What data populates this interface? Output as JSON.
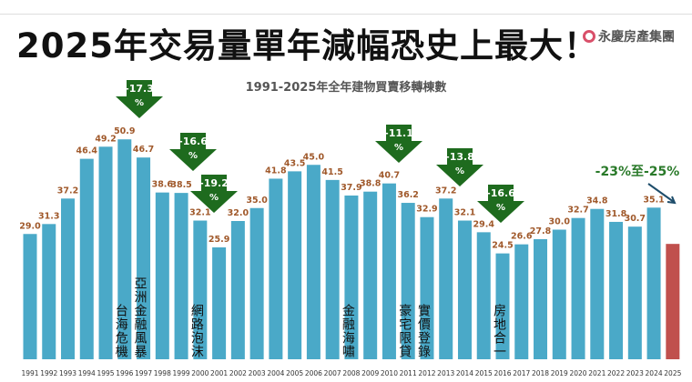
{
  "header": {
    "title": "2025年交易量單年減幅恐史上最大！",
    "logo": "永慶房產集團"
  },
  "chart_data": {
    "type": "bar",
    "title": "1991-2025年全年建物買賣移轉棟數",
    "categories": [
      "1991",
      "1992",
      "1993",
      "1994",
      "1995",
      "1996",
      "1997",
      "1998",
      "1999",
      "2000",
      "2001",
      "2002",
      "2003",
      "2004",
      "2005",
      "2006",
      "2007",
      "2008",
      "2009",
      "2010",
      "2011",
      "2012",
      "2013",
      "2014",
      "2015",
      "2016",
      "2017",
      "2018",
      "2019",
      "2020",
      "2021",
      "2022",
      "2023",
      "2024",
      "2025"
    ],
    "values": [
      29.0,
      31.3,
      37.2,
      46.4,
      49.2,
      50.9,
      46.7,
      38.6,
      38.5,
      32.1,
      25.9,
      32.0,
      35.0,
      41.8,
      43.5,
      45.0,
      41.5,
      37.9,
      38.8,
      40.7,
      36.2,
      32.9,
      37.2,
      32.1,
      29.4,
      24.5,
      26.6,
      27.8,
      30.0,
      32.7,
      34.8,
      31.8,
      30.7,
      35.1,
      26.7
    ],
    "value_labels": [
      "29.0",
      "31.3",
      "37.2",
      "46.4",
      "49.2",
      "50.9",
      "46.7",
      "38.6",
      "38.5",
      "32.1",
      "25.9",
      "32.0",
      "35.0",
      "41.8",
      "43.5",
      "45.0",
      "41.5",
      "37.9",
      "38.8",
      "40.7",
      "36.2",
      "32.9",
      "37.2",
      "32.1",
      "29.4",
      "24.5",
      "26.6",
      "27.8",
      "30.0",
      "32.7",
      "34.8",
      "31.8",
      "30.7",
      "35.1",
      ""
    ],
    "ylim": [
      0,
      55
    ],
    "colors": {
      "bar": "#4aa9c8",
      "highlight": "#c0504d",
      "label": "#a0592b",
      "arrow": "#1e6b1e"
    },
    "events": [
      {
        "year": "1996",
        "text": "台海危機"
      },
      {
        "year": "1997",
        "text": "亞洲金融風暴"
      },
      {
        "year": "2000",
        "text": "網路泡沫"
      },
      {
        "year": "2008",
        "text": "金融海嘯"
      },
      {
        "year": "2011",
        "text": "豪宅限貸"
      },
      {
        "year": "2012",
        "text": "實價登錄"
      },
      {
        "year": "2016",
        "text": "房地合一"
      }
    ],
    "drops": [
      {
        "year": "1997",
        "line1": "-17.3",
        "line2": "%"
      },
      {
        "year": "1999",
        "line1": "-16.6",
        "line2": "%"
      },
      {
        "year": "2000",
        "line1": "-19.2",
        "line2": "%"
      },
      {
        "year": "2010",
        "line1": "-11.1",
        "line2": "%"
      },
      {
        "year": "2013",
        "line1": "-13.8",
        "line2": "%"
      },
      {
        "year": "2016",
        "line1": "-16.6",
        "line2": "%"
      }
    ],
    "forecast": "-23%至-25%"
  }
}
